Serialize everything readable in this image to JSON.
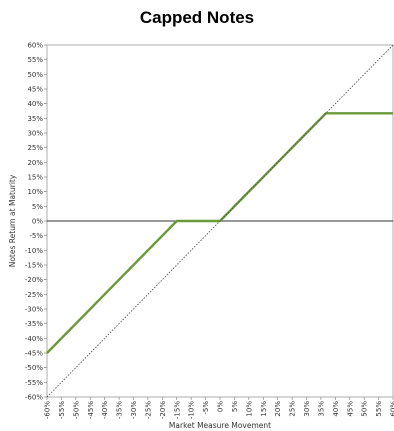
{
  "chart_data": {
    "type": "line",
    "title": "Capped Notes",
    "xlabel": "Market Measure Movement",
    "ylabel": "Notes Return at Maturity",
    "xlim": [
      -60,
      60
    ],
    "ylim": [
      -60,
      60
    ],
    "x_ticks": [
      "-60%",
      "-55%",
      "-50%",
      "-45%",
      "-40%",
      "-35%",
      "-30%",
      "-25%",
      "-20%",
      "-15%",
      "-10%",
      "-5%",
      "0%",
      "5%",
      "10%",
      "15%",
      "20%",
      "25%",
      "30%",
      "35%",
      "40%",
      "45%",
      "50%",
      "55%",
      "60%"
    ],
    "y_ticks": [
      "-60%",
      "-55%",
      "-50%",
      "-45%",
      "-40%",
      "-35%",
      "-30%",
      "-25%",
      "-20%",
      "-15%",
      "-10%",
      "-5%",
      "0%",
      "5%",
      "10%",
      "15%",
      "20%",
      "25%",
      "30%",
      "35%",
      "40%",
      "45%",
      "50%",
      "55%",
      "60%"
    ],
    "series": [
      {
        "style": "solid",
        "color": "#6b9a3a",
        "x": [
          -60,
          -15,
          0,
          36.7,
          60
        ],
        "y": [
          -45,
          0,
          0,
          36.7,
          36.7
        ]
      },
      {
        "style": "dotted",
        "color": "#555555",
        "x": [
          -60,
          60
        ],
        "y": [
          -60,
          60
        ]
      }
    ],
    "zero_line": true,
    "grid": false
  }
}
